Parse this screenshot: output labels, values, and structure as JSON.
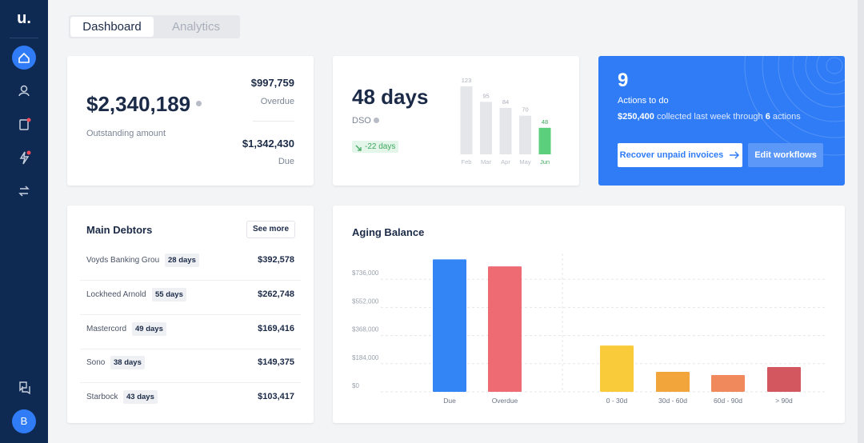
{
  "brand": "u.",
  "tabs": [
    "Dashboard",
    "Analytics"
  ],
  "avatar": "B",
  "outstanding": {
    "amount": "$2,340,189",
    "label": "Outstanding amount",
    "overdue_amount": "$997,759",
    "overdue_label": "Overdue",
    "due_amount": "$1,342,430",
    "due_label": "Due"
  },
  "dso": {
    "value": "48 days",
    "label": "DSO",
    "change": "-22 days",
    "chart_data": {
      "type": "bar",
      "categories": [
        "Feb",
        "Mar",
        "Apr",
        "May",
        "Jun"
      ],
      "values": [
        123,
        95,
        84,
        70,
        48
      ],
      "colors": [
        "#e4e6ea",
        "#e4e6ea",
        "#e4e6ea",
        "#e4e6ea",
        "#5ccf7d"
      ],
      "ylim": [
        0,
        123
      ]
    }
  },
  "actions": {
    "count": "9",
    "label": "Actions to do",
    "summary": [
      "$250,400",
      "collected last week through",
      "6",
      "actions"
    ],
    "buttons": [
      "Recover unpaid invoices",
      "Edit workflows"
    ]
  },
  "debtors": {
    "title": "Main Debtors",
    "see_more": "See more",
    "rows": [
      {
        "name": "Voyds Banking Group",
        "days": "28 days",
        "amount": "$392,578"
      },
      {
        "name": "Lockheed Arnold",
        "days": "55 days",
        "amount": "$262,748"
      },
      {
        "name": "Mastercord",
        "days": "49 days",
        "amount": "$169,416"
      },
      {
        "name": "Sono",
        "days": "38 days",
        "amount": "$149,375"
      },
      {
        "name": "Starbock",
        "days": "43 days",
        "amount": "$103,417"
      }
    ]
  },
  "aging": {
    "title": "Aging Balance",
    "chart_data": {
      "type": "bar",
      "categories": [
        "Due",
        "Overdue",
        "0 - 30d",
        "30d - 60d",
        "60d - 90d",
        "> 90d"
      ],
      "values": [
        866000,
        820000,
        302700,
        130500,
        109600,
        161800
      ],
      "colors": [
        "#3384f5",
        "#ef6b73",
        "#f9cb3a",
        "#f2a53a",
        "#f08a5d",
        "#d2575e"
      ],
      "ylim": [
        0,
        920000
      ],
      "yticks": [
        {
          "value": 0,
          "label": "$0"
        },
        {
          "value": 184000,
          "label": "$184,000"
        },
        {
          "value": 368000,
          "label": "$368,000"
        },
        {
          "value": 552000,
          "label": "$552,000"
        },
        {
          "value": 736000,
          "label": "$736,000"
        }
      ],
      "grid": true
    }
  }
}
